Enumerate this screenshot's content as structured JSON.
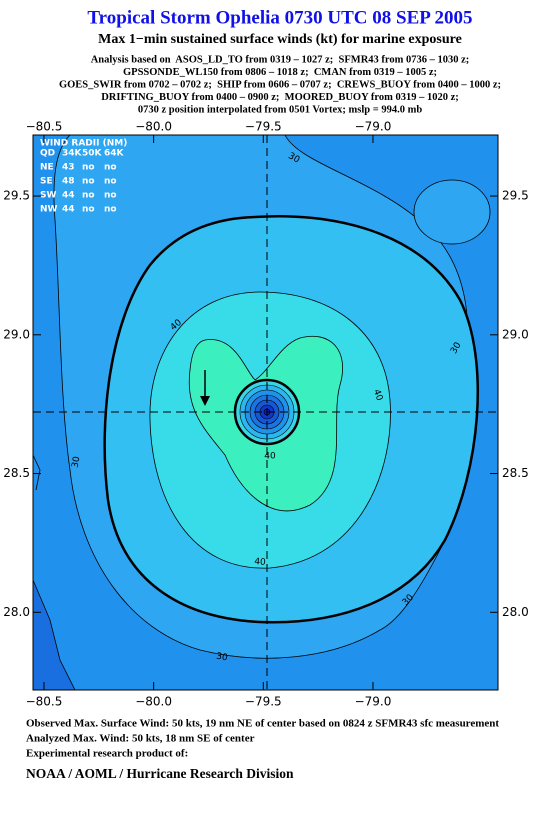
{
  "header": {
    "title": "Tropical Storm Ophelia 0730 UTC 08 SEP 2005",
    "subtitle": "Max 1−min sustained surface winds (kt) for marine exposure",
    "analysis_lines": [
      "Analysis based on  ASOS_LD_TO from 0319 – 1027 z;  SFMR43 from 0736 – 1030 z;",
      "GPSSONDE_WL150 from 0806 – 1018 z;  CMAN from 0319 – 1005 z;",
      "GOES_SWIR from 0702 – 0702 z;  SHIP from 0606 – 0707 z;  CREWS_BUOY from 0400 – 1000 z;",
      "DRIFTING_BUOY from 0400 – 0900 z;  MOORED_BUOY from 0319 – 1020 z;",
      "0730 z position interpolated from 0501 Vortex; mslp = 994.0 mb"
    ]
  },
  "chart_data": {
    "type": "contour-map",
    "xlim": [
      -80.55,
      -78.43
    ],
    "ylim": [
      27.72,
      29.72
    ],
    "xticks": [
      {
        "value": -80.5,
        "label": "−80.5"
      },
      {
        "value": -80.0,
        "label": "−80.0"
      },
      {
        "value": -79.5,
        "label": "−79.5"
      },
      {
        "value": -79.0,
        "label": "−79.0"
      }
    ],
    "yticks": [
      {
        "value": 28.0,
        "label": "28.0"
      },
      28.5,
      {
        "value": 29.0,
        "label": "29.0"
      },
      29.5
    ],
    "contour_labels": [
      30,
      30,
      30,
      30,
      30,
      40,
      40,
      40,
      40
    ]
  },
  "wind_radii": {
    "title": "WIND RADII (NM)",
    "header": [
      "QD",
      "34K",
      "50K",
      "64K"
    ],
    "rows": [
      [
        "NE",
        43,
        "no",
        "no"
      ],
      [
        "SE",
        48,
        "no",
        "no"
      ],
      [
        "SW",
        44,
        "no",
        "no"
      ],
      [
        "NW",
        44,
        "no",
        "no"
      ]
    ]
  },
  "footer": {
    "observed": "Observed Max. Surface Wind: 50 kts, 19 nm NE of center based on 0824 z SFMR43 sfc measurement",
    "analyzed": "Analyzed Max. Wind: 50 kts, 18 nm SE of center",
    "product": "Experimental research product of:",
    "agency": "NOAA / AOML / Hurricane Research Division"
  }
}
